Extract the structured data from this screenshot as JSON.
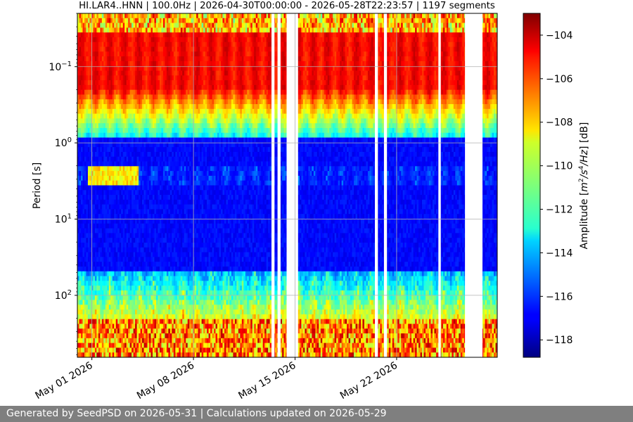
{
  "chart_data": {
    "type": "heatmap",
    "title": "HI.LAR4..HNN | 100.0Hz | 2026-04-30T00:00:00 - 2026-05-28T22:23:57 | 1197 segments",
    "ylabel": "Period [s]",
    "colorbar_label": "Amplitude [m²/s⁴/Hz] [dB]",
    "colorbar_label_parts": {
      "prefix": "Amplitude [",
      "m": "m",
      "exp2": "2",
      "mid": "/s",
      "exp4": "4",
      "hz": "/Hz",
      "suffix": "] [dB]"
    },
    "y_scale": "log",
    "y_inverted": true,
    "yrange": [
      0.02,
      650
    ],
    "y_ticks": [
      {
        "value": 0.1,
        "base": "10",
        "exp": "−1"
      },
      {
        "value": 1,
        "base": "10",
        "exp": "0"
      },
      {
        "value": 10,
        "base": "10",
        "exp": "1"
      },
      {
        "value": 100,
        "base": "10",
        "exp": "2"
      }
    ],
    "x_start": "2026-04-30T00:00:00",
    "x_end": "2026-05-28T22:23:57",
    "x_ticks": [
      {
        "date": "2026-05-01",
        "label": "May 01 2026"
      },
      {
        "date": "2026-05-08",
        "label": "May 08 2026"
      },
      {
        "date": "2026-05-15",
        "label": "May 15 2026"
      },
      {
        "date": "2026-05-22",
        "label": "May 22 2026"
      }
    ],
    "data_gaps": [
      {
        "start": "2026-05-13T09:00",
        "end": "2026-05-13T14:00"
      },
      {
        "start": "2026-05-13T19:00",
        "end": "2026-05-14T00:00"
      },
      {
        "start": "2026-05-14T10:00",
        "end": "2026-05-15T05:00"
      },
      {
        "start": "2026-05-20T12:00",
        "end": "2026-05-20T17:00"
      },
      {
        "start": "2026-05-21T03:00",
        "end": "2026-05-21T08:00"
      },
      {
        "start": "2026-05-24T21:00",
        "end": "2026-05-25T01:00"
      },
      {
        "start": "2026-05-26T17:00",
        "end": "2026-05-27T22:00"
      }
    ],
    "colorbar": {
      "min": -118.8,
      "max": -103,
      "ticks": [
        -104,
        -106,
        -108,
        -110,
        -112,
        -114,
        -116,
        -118
      ]
    },
    "colormap": "jet",
    "grid": true
  },
  "footer": {
    "text": "Generated by SeedPSD on 2026-05-31 | Calculations updated on 2026-05-29"
  }
}
